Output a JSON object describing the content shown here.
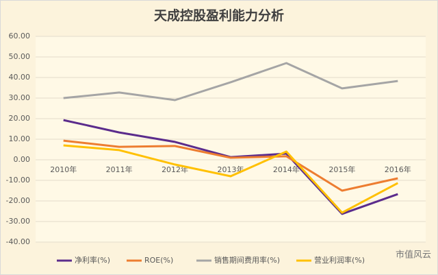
{
  "chart_data": {
    "type": "line",
    "title": "天成控股盈利能力分析",
    "categories": [
      "2010年",
      "2011年",
      "2012年",
      "2013年",
      "2014年",
      "2015年",
      "2016年"
    ],
    "series": [
      {
        "name": "净利率(%)",
        "color": "#5b2c8c",
        "values": [
          19.3,
          13.3,
          8.7,
          1.3,
          3,
          -26.3,
          -16.7
        ]
      },
      {
        "name": "ROE(%)",
        "color": "#ed7d31",
        "values": [
          9.3,
          6.3,
          6.7,
          1,
          1.7,
          -15,
          -9
        ]
      },
      {
        "name": "销售期间费用率(%)",
        "color": "#a5a5a5",
        "values": [
          30,
          32.7,
          29,
          37.7,
          47,
          34.7,
          38.3
        ]
      },
      {
        "name": "营业利润率(%)",
        "color": "#ffc000",
        "values": [
          7,
          4.7,
          -2.3,
          -8,
          4,
          -25.7,
          -11.3
        ]
      }
    ],
    "ylim": [
      -40,
      60
    ],
    "yticks": [
      {
        "value": -40,
        "label": "-40.00"
      },
      {
        "value": -30,
        "label": "-30.00"
      },
      {
        "value": -20,
        "label": "-20.00"
      },
      {
        "value": -10,
        "label": "-10.00"
      },
      {
        "value": 0,
        "label": "0.00"
      },
      {
        "value": 10,
        "label": "10.00"
      },
      {
        "value": 20,
        "label": "20.00"
      },
      {
        "value": 30,
        "label": "30.00"
      },
      {
        "value": 40,
        "label": "40.00"
      },
      {
        "value": 50,
        "label": "50.00"
      },
      {
        "value": 60,
        "label": "60.00"
      }
    ],
    "grid": true,
    "legend": "bottom",
    "watermark": "市值风云"
  }
}
